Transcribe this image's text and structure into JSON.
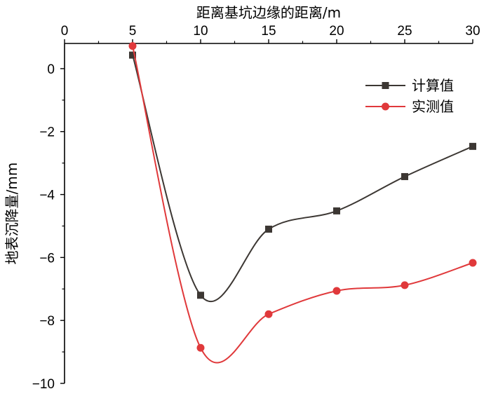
{
  "chart_data": {
    "type": "line",
    "title": "",
    "xlabel": "距离基坑边缘的距离/m",
    "ylabel": "地表沉降量/mm",
    "xlim": [
      0,
      30
    ],
    "ylim": [
      -10,
      0.8
    ],
    "xticks": [
      0,
      5,
      10,
      15,
      20,
      25,
      30
    ],
    "yticks": [
      0,
      -2,
      -4,
      -6,
      -8,
      -10
    ],
    "xtick_labels": [
      "0",
      "5",
      "10",
      "15",
      "20",
      "25",
      "30"
    ],
    "ytick_labels": [
      "0",
      "−2",
      "−4",
      "−6",
      "−8",
      "−10"
    ],
    "x_axis_position": "top",
    "grid": false,
    "legend_position": "top-right",
    "smooth": true,
    "series": [
      {
        "name": "计算值",
        "color": "#3c3733",
        "marker": "square",
        "x": [
          5,
          10,
          15,
          20,
          25,
          30
        ],
        "y": [
          0.43,
          -7.2,
          -5.1,
          -4.52,
          -3.43,
          -2.47
        ]
      },
      {
        "name": "实测值",
        "color": "#e0393b",
        "marker": "circle",
        "x": [
          5,
          10,
          15,
          20,
          25,
          30
        ],
        "y": [
          0.72,
          -8.87,
          -7.8,
          -7.06,
          -6.88,
          -6.17
        ]
      }
    ]
  }
}
